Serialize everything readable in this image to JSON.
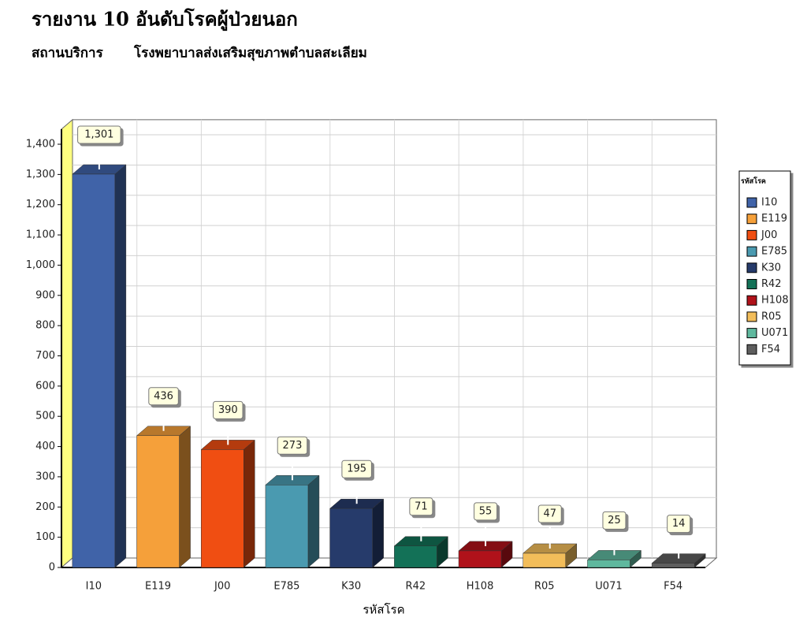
{
  "chart_data": {
    "type": "bar3d",
    "title": "รายงาน 10 อันดับโรคผู้ป่วยนอก",
    "subtitle_label": "สถานบริการ",
    "subtitle": "โรงพยาบาลส่งเสริมสุขภาพตำบลสะเลียม",
    "x_label": "รหัสโรค",
    "legend_title": "รหัสโรค",
    "legend_position": "right",
    "grid": true,
    "categories": [
      "I10",
      "E119",
      "J00",
      "E785",
      "K30",
      "R42",
      "H108",
      "R05",
      "U071",
      "F54"
    ],
    "values": [
      1301,
      436,
      390,
      273,
      195,
      71,
      55,
      47,
      25,
      14
    ],
    "value_labels": [
      "1,301",
      "436",
      "390",
      "273",
      "195",
      "71",
      "55",
      "47",
      "25",
      "14"
    ],
    "colors": [
      "#4063a8",
      "#f5a03a",
      "#f04e12",
      "#4a9ab0",
      "#263b6b",
      "#137157",
      "#b0121a",
      "#f2bd5a",
      "#5fb89e",
      "#5e5e5e"
    ],
    "ylim": [
      0,
      1450
    ],
    "yticks": [
      0,
      100,
      200,
      300,
      400,
      500,
      600,
      700,
      800,
      900,
      {
        "value": 1000,
        "label": "1,000"
      },
      {
        "value": 1100,
        "label": "1,100"
      },
      {
        "value": 1200,
        "label": "1,200"
      },
      {
        "value": 1300,
        "label": "1,300"
      },
      {
        "value": 1400,
        "label": "1,400"
      }
    ]
  }
}
